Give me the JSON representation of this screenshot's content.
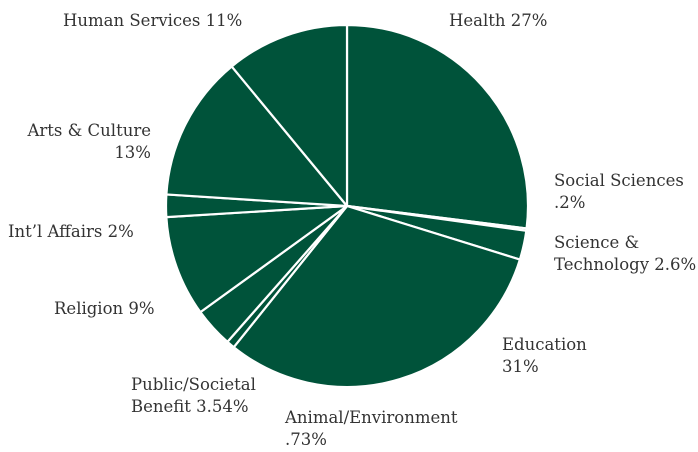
{
  "chart_data": {
    "type": "pie",
    "start_angle_deg": 0,
    "direction": "clockwise",
    "colors": {
      "slice_fill": "#00533a",
      "slice_border": "#ffffff",
      "label_text": "#333333",
      "background": "#ffffff"
    },
    "slices": [
      {
        "key": "health",
        "name": "Health",
        "value": 27,
        "label_lines": [
          "Health 27%"
        ]
      },
      {
        "key": "social-sciences",
        "name": "Social Sciences",
        "value": 0.2,
        "label_lines": [
          "Social Sciences",
          ".2%"
        ]
      },
      {
        "key": "science-technology",
        "name": "Science & Technology",
        "value": 2.6,
        "label_lines": [
          "Science &",
          "Technology 2.6%"
        ]
      },
      {
        "key": "education",
        "name": "Education",
        "value": 31,
        "label_lines": [
          "Education",
          "31%"
        ]
      },
      {
        "key": "animal-environment",
        "name": "Animal/Environment",
        "value": 0.73,
        "label_lines": [
          "Animal/Environment",
          ".73%"
        ]
      },
      {
        "key": "public-societal-benefit",
        "name": "Public/Societal Benefit",
        "value": 3.54,
        "label_lines": [
          "Public/Societal",
          "Benefit 3.54%"
        ]
      },
      {
        "key": "religion",
        "name": "Religion",
        "value": 9,
        "label_lines": [
          "Religion 9%"
        ]
      },
      {
        "key": "intl-affairs",
        "name": "Int’l Affairs",
        "value": 2,
        "label_lines": [
          "Int’l Affairs 2%"
        ]
      },
      {
        "key": "arts-culture",
        "name": "Arts & Culture",
        "value": 13,
        "label_lines": [
          "Arts & Culture",
          "13%"
        ]
      },
      {
        "key": "human-services",
        "name": "Human Services",
        "value": 11,
        "label_lines": [
          "Human Services 11%"
        ]
      }
    ]
  }
}
